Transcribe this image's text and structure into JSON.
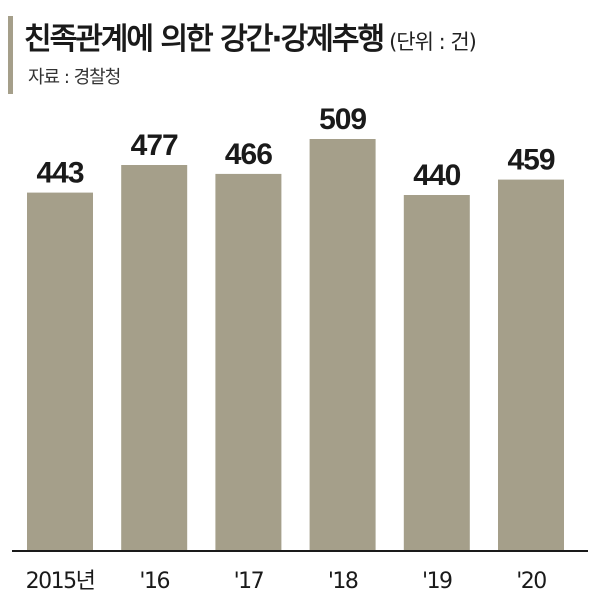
{
  "header": {
    "title": "친족관계에 의한 강간·강제추행",
    "unit": "(단위 : 건)",
    "source": "자료 : 경찰청"
  },
  "colors": {
    "bar": "#a59f8a",
    "accent_bar": "#a59f8a",
    "axis": "#1a1a1a",
    "text": "#1a1a1a"
  },
  "chart_data": {
    "type": "bar",
    "title": "친족관계에 의한 강간·강제추행",
    "unit": "(단위 : 건)",
    "source": "자료 : 경찰청",
    "categories": [
      "2015년",
      "'16",
      "'17",
      "'18",
      "'19",
      "'20"
    ],
    "values": [
      443,
      477,
      466,
      509,
      440,
      459
    ],
    "xlabel": "",
    "ylabel": "",
    "grid": false,
    "legend": "none"
  }
}
